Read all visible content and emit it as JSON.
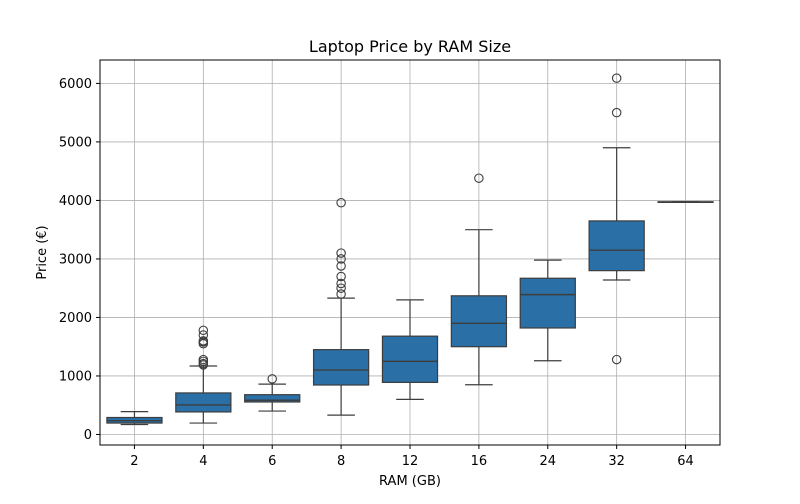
{
  "chart_data": {
    "type": "box",
    "title": "Laptop Price by RAM Size",
    "xlabel": "RAM (GB)",
    "ylabel": "Price (€)",
    "categories": [
      "2",
      "4",
      "6",
      "8",
      "12",
      "16",
      "24",
      "32",
      "64"
    ],
    "ylim": [
      -180,
      6400
    ],
    "yticks": [
      0,
      1000,
      2000,
      3000,
      4000,
      5000,
      6000
    ],
    "grid": true,
    "box_color": "#2a6fa6",
    "boxes": [
      {
        "category": "2",
        "whisker_low": 170,
        "q1": 195,
        "median": 235,
        "q3": 290,
        "whisker_high": 390,
        "outliers": []
      },
      {
        "category": "4",
        "whisker_low": 195,
        "q1": 385,
        "median": 505,
        "q3": 710,
        "whisker_high": 1170,
        "outliers": [
          1190,
          1210,
          1250,
          1280,
          1550,
          1580,
          1600,
          1700,
          1780
        ]
      },
      {
        "category": "6",
        "whisker_low": 400,
        "q1": 555,
        "median": 585,
        "q3": 680,
        "whisker_high": 860,
        "outliers": [
          950
        ]
      },
      {
        "category": "8",
        "whisker_low": 330,
        "q1": 845,
        "median": 1100,
        "q3": 1450,
        "whisker_high": 2330,
        "outliers": [
          2400,
          2500,
          2580,
          2700,
          2880,
          3000,
          3100,
          3960
        ]
      },
      {
        "category": "12",
        "whisker_low": 600,
        "q1": 890,
        "median": 1250,
        "q3": 1680,
        "whisker_high": 2300,
        "outliers": []
      },
      {
        "category": "16",
        "whisker_low": 850,
        "q1": 1500,
        "median": 1900,
        "q3": 2370,
        "whisker_high": 3500,
        "outliers": [
          4380
        ]
      },
      {
        "category": "24",
        "whisker_low": 1260,
        "q1": 1820,
        "median": 2390,
        "q3": 2670,
        "whisker_high": 2980,
        "outliers": []
      },
      {
        "category": "32",
        "whisker_low": 2640,
        "q1": 2800,
        "median": 3150,
        "q3": 3650,
        "whisker_high": 4900,
        "outliers": [
          1280,
          5500,
          6090
        ]
      },
      {
        "category": "64",
        "whisker_low": 3975,
        "q1": 3975,
        "median": 3975,
        "q3": 3975,
        "whisker_high": 3975,
        "outliers": []
      }
    ]
  }
}
